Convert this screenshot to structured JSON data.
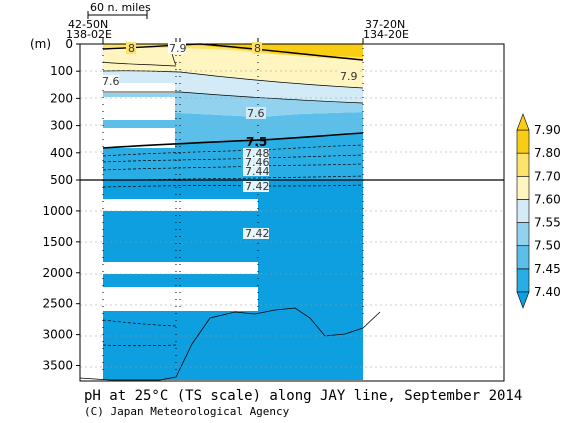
{
  "caption": "pH at 25°C (TS scale) along JAY line, September 2014",
  "credit": "(C) Japan Meteorological Agency",
  "scale_bar_label": "60 n. miles",
  "left_station": {
    "lat": "42-50N",
    "lon": "138-02E"
  },
  "right_station": {
    "lat": "37-20N",
    "lon": "134-20E"
  },
  "depth_unit": "(m)",
  "colors": {
    "c740": "#0e9fe0",
    "c745": "#28aee4",
    "c750": "#5cbfe9",
    "c755": "#92d2ef",
    "c760": "#d2ebf6",
    "c770": "#fff5c0",
    "c780": "#fde26c",
    "c790": "#f8cd14"
  },
  "chart_data": {
    "type": "heatmap",
    "title": "pH at 25°C (TS scale) along JAY line, September 2014",
    "y_upper_ticks": [
      0,
      100,
      200,
      300,
      400,
      500
    ],
    "y_lower_ticks": [
      1000,
      1500,
      2000,
      2500,
      3000,
      3500
    ],
    "y_upper_range": [
      0,
      500
    ],
    "y_lower_range": [
      500,
      3750
    ],
    "colorbar": {
      "levels": [
        7.4,
        7.45,
        7.5,
        7.55,
        7.6,
        7.7,
        7.8,
        7.9
      ],
      "labels": [
        "7.40",
        "7.45",
        "7.50",
        "7.55",
        "7.60",
        "7.70",
        "7.80",
        "7.90"
      ]
    },
    "contour_labels": [
      "8",
      "7.9",
      "8",
      "7.9",
      "7.6",
      "7.6",
      "7.5",
      "7.48",
      "7.46",
      "7.44",
      "7.42",
      "7.42"
    ]
  }
}
